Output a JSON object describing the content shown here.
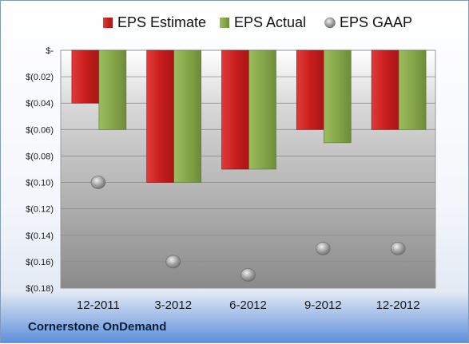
{
  "footer": {
    "company": "Cornerstone OnDemand"
  },
  "colors": {
    "estimate": "#d42a2a",
    "actual": "#8fae52",
    "gaap": "#a8a8a8",
    "plot_bg_top": "#ffffff",
    "plot_bg_bottom": "#8a8a8a"
  },
  "chart_data": {
    "type": "bar",
    "title": "",
    "xlabel": "",
    "ylabel": "",
    "categories": [
      "12-2011",
      "3-2012",
      "6-2012",
      "9-2012",
      "12-2012"
    ],
    "series": [
      {
        "name": "EPS Estimate",
        "kind": "bar",
        "values": [
          -0.04,
          -0.1,
          -0.09,
          -0.06,
          -0.06
        ]
      },
      {
        "name": "EPS Actual",
        "kind": "bar",
        "values": [
          -0.06,
          -0.1,
          -0.09,
          -0.07,
          -0.06
        ]
      },
      {
        "name": "EPS GAAP",
        "kind": "marker",
        "values": [
          -0.1,
          -0.16,
          -0.17,
          -0.15,
          -0.15
        ]
      }
    ],
    "ylim": [
      -0.18,
      0
    ],
    "yticks": [
      0,
      -0.02,
      -0.04,
      -0.06,
      -0.08,
      -0.1,
      -0.12,
      -0.14,
      -0.16,
      -0.18
    ],
    "ytick_labels": [
      "$-",
      "$(0.02)",
      "$(0.04)",
      "$(0.06)",
      "$(0.08)",
      "$(0.10)",
      "$(0.12)",
      "$(0.14)",
      "$(0.16)",
      "$(0.18)"
    ],
    "grid": true,
    "legend": "top"
  }
}
